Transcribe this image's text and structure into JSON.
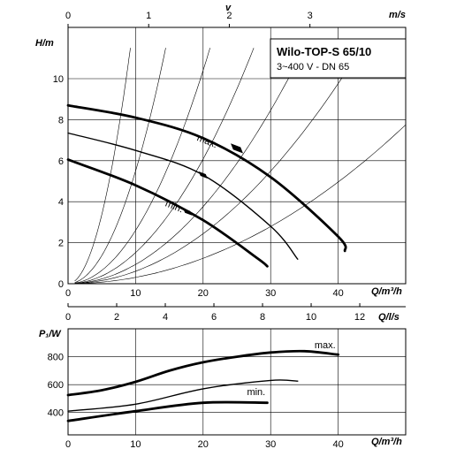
{
  "chart_data": [
    {
      "type": "line",
      "title": "Wilo-TOP-S 65/10",
      "subtitle": "3~400 V - DN 65",
      "xlabel": "Q/m³/h",
      "ylabel": "H/m",
      "xlim": [
        0,
        50
      ],
      "ylim": [
        0,
        11.5
      ],
      "x_ticks": [
        "0",
        "10",
        "20",
        "30",
        "40"
      ],
      "y_ticks": [
        "0",
        "2",
        "4",
        "6",
        "8",
        "10"
      ],
      "top_axis": {
        "label_v": "v",
        "label_unit": "m/s",
        "ticks": [
          "0",
          "1",
          "2",
          "3"
        ],
        "tick_values": [
          0,
          1,
          2,
          3
        ],
        "q_per_unit": 11.94
      },
      "grid": true,
      "series": [
        {
          "name": "max.",
          "x": [
            0,
            10,
            20,
            30,
            40,
            41
          ],
          "y": [
            8.7,
            8.1,
            7.1,
            5.2,
            2.3,
            1.6
          ],
          "weight": "bold"
        },
        {
          "name": "",
          "x": [
            0,
            10,
            20,
            30,
            34
          ],
          "y": [
            7.35,
            6.5,
            5.3,
            2.8,
            1.2
          ],
          "weight": "thin"
        },
        {
          "name": "min.",
          "x": [
            0,
            10,
            20,
            28,
            29.5
          ],
          "y": [
            6.05,
            4.8,
            3.1,
            1.25,
            0.85
          ],
          "weight": "bold"
        }
      ],
      "system_curves_k": [
        0.135,
        0.055,
        0.026,
        0.0152,
        0.0094,
        0.0061,
        0.0031
      ],
      "markers": [
        {
          "x": 25,
          "y": 6.6
        },
        {
          "x": 20,
          "y": 5.3
        },
        {
          "x": 17.7,
          "y": 3.5
        }
      ],
      "annotations": [
        {
          "text": "max.",
          "x": 19,
          "y": 7.0
        },
        {
          "text": "min.",
          "x": 14.3,
          "y": 3.8
        }
      ]
    },
    {
      "type": "line",
      "xlabel": "Q/m³/h",
      "ylabel": "P₁/W",
      "xlim": [
        0,
        50
      ],
      "ylim": [
        240,
        1000
      ],
      "x_ticks": [
        "0",
        "10",
        "20",
        "30",
        "40"
      ],
      "y_ticks": [
        "400",
        "600",
        "800"
      ],
      "top_axis": {
        "label": "Q/l/s",
        "ticks": [
          "0",
          "2",
          "4",
          "6",
          "8",
          "10",
          "12"
        ],
        "tick_values": [
          0,
          2,
          4,
          6,
          8,
          10,
          12
        ],
        "q_per_unit": 3.6
      },
      "grid": true,
      "series": [
        {
          "name": "max.",
          "x": [
            0,
            5,
            10,
            15,
            20,
            25,
            30,
            35,
            40
          ],
          "y": [
            525,
            560,
            620,
            700,
            760,
            800,
            830,
            840,
            815
          ],
          "weight": "bold"
        },
        {
          "name": "",
          "x": [
            0,
            10,
            20,
            30,
            34
          ],
          "y": [
            410,
            460,
            570,
            630,
            625
          ],
          "weight": "thin"
        },
        {
          "name": "min.",
          "x": [
            0,
            10,
            20,
            29.5
          ],
          "y": [
            340,
            410,
            470,
            470
          ],
          "weight": "bold"
        }
      ],
      "annotations": [
        {
          "text": "max.",
          "x": 36.5,
          "y": 860
        },
        {
          "text": "min.",
          "x": 26.5,
          "y": 525
        }
      ]
    }
  ]
}
